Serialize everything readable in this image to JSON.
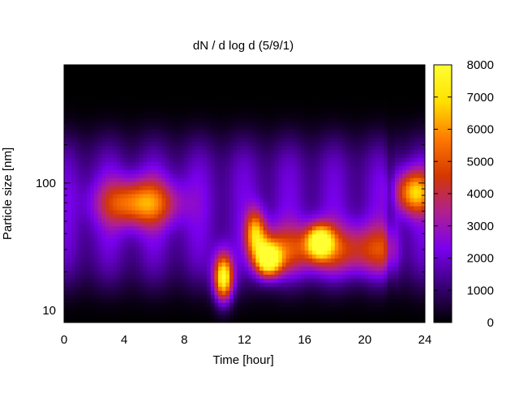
{
  "chart_data": {
    "type": "heatmap",
    "title": "dN / d log d (5/9/1)",
    "xlabel": "Time [hour]",
    "ylabel": "Particle size [nm]",
    "xlim": [
      0,
      24
    ],
    "xticks": [
      "0",
      "4",
      "8",
      "12",
      "16",
      "20",
      "24"
    ],
    "xtick_values": [
      0,
      4,
      8,
      12,
      16,
      20,
      24
    ],
    "ylim": [
      8,
      850
    ],
    "yscale": "log",
    "yticks": [
      "10",
      "100"
    ],
    "ytick_values": [
      10,
      100
    ],
    "colorbar": {
      "range": [
        0,
        8000
      ],
      "ticks": [
        "0",
        "1000",
        "2000",
        "3000",
        "4000",
        "5000",
        "6000",
        "7000",
        "8000"
      ],
      "tick_values": [
        0,
        1000,
        2000,
        3000,
        4000,
        5000,
        6000,
        7000,
        8000
      ],
      "colormap": [
        "#000000",
        "#3a0078",
        "#7a00ee",
        "#b02090",
        "#d43800",
        "#ff7a00",
        "#ffe000",
        "#ffff33"
      ]
    },
    "grid": false,
    "features": [
      {
        "type": "persistent-mode",
        "x_range": [
          0,
          24
        ],
        "size_range": [
          12,
          300
        ],
        "peak_value": 2200
      },
      {
        "type": "accumulation-mode",
        "x_center": 5,
        "size_center": 70,
        "peak_value": 4600
      },
      {
        "type": "nucleation-burst",
        "x_center": 10.6,
        "size_center": 18,
        "peak_value": 7200
      },
      {
        "type": "nucleation-burst",
        "x_center": 12.7,
        "size_center": 40,
        "peak_value": 4800
      },
      {
        "type": "growth-event",
        "x_center": 13.6,
        "size_center": 25,
        "peak_value": 6200
      },
      {
        "type": "growth-event",
        "x_center": 17,
        "size_center": 35,
        "peak_value": 5800
      },
      {
        "type": "late-mode",
        "x_center": 23.3,
        "size_center": 85,
        "peak_value": 5000
      }
    ]
  }
}
